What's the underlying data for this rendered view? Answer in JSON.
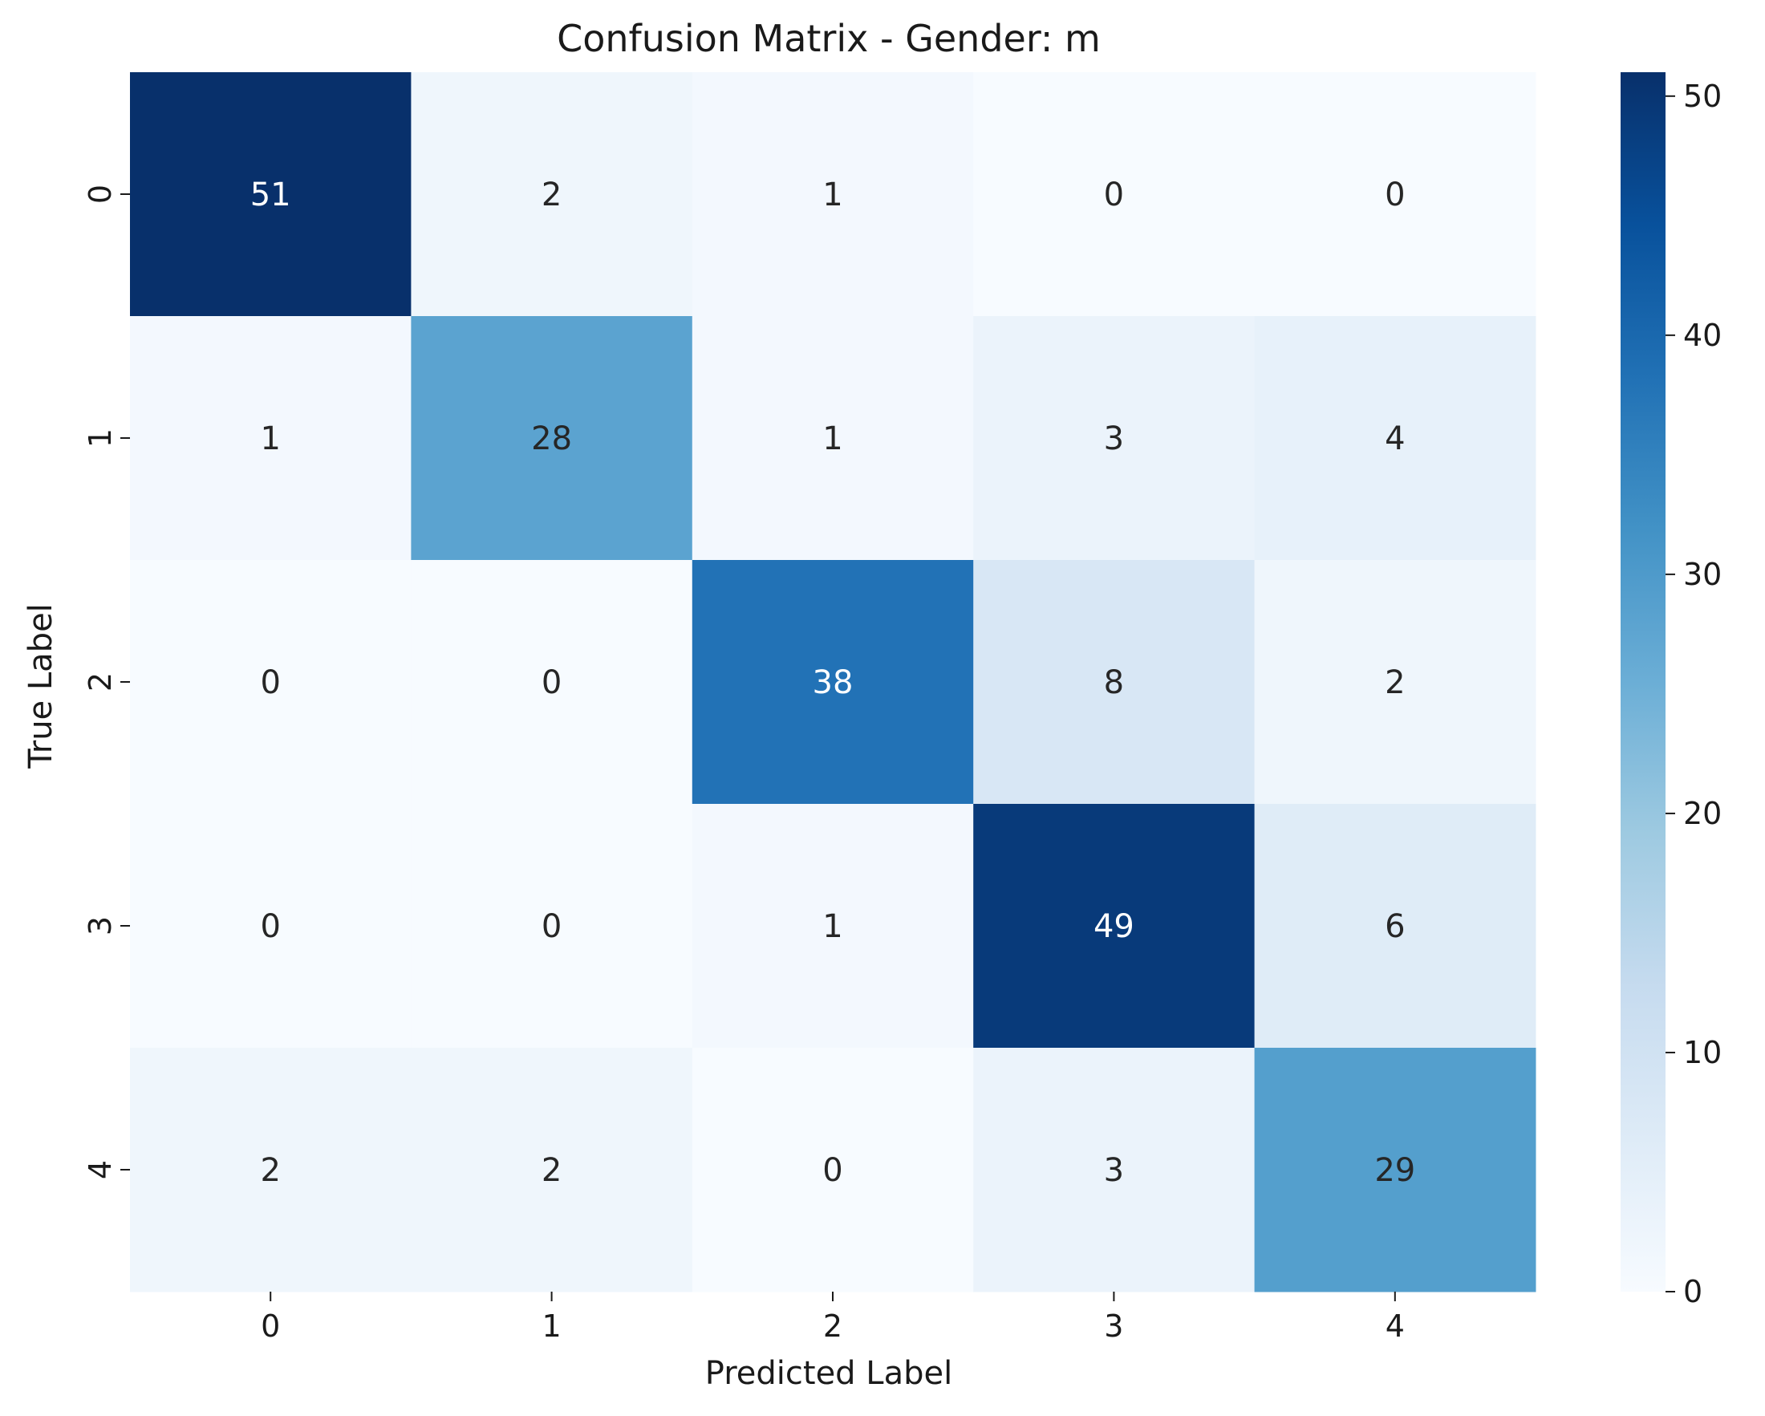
{
  "chart_data": {
    "type": "heatmap",
    "title": "Confusion Matrix - Gender: m",
    "xlabel": "Predicted Label",
    "ylabel": "True Label",
    "x_categories": [
      "0",
      "1",
      "2",
      "3",
      "4"
    ],
    "y_categories": [
      "0",
      "1",
      "2",
      "3",
      "4"
    ],
    "matrix": [
      [
        51,
        2,
        1,
        0,
        0
      ],
      [
        1,
        28,
        1,
        3,
        4
      ],
      [
        0,
        0,
        38,
        8,
        2
      ],
      [
        0,
        0,
        1,
        49,
        6
      ],
      [
        2,
        2,
        0,
        3,
        29
      ]
    ],
    "colormap": "Blues",
    "color_range": [
      0,
      51
    ],
    "colorbar": {
      "ticks": [
        0,
        10,
        20,
        30,
        40,
        50
      ],
      "tick_labels": [
        "0",
        "10",
        "20",
        "30",
        "40",
        "50"
      ]
    },
    "grid": false,
    "legend": "colorbar-right"
  }
}
